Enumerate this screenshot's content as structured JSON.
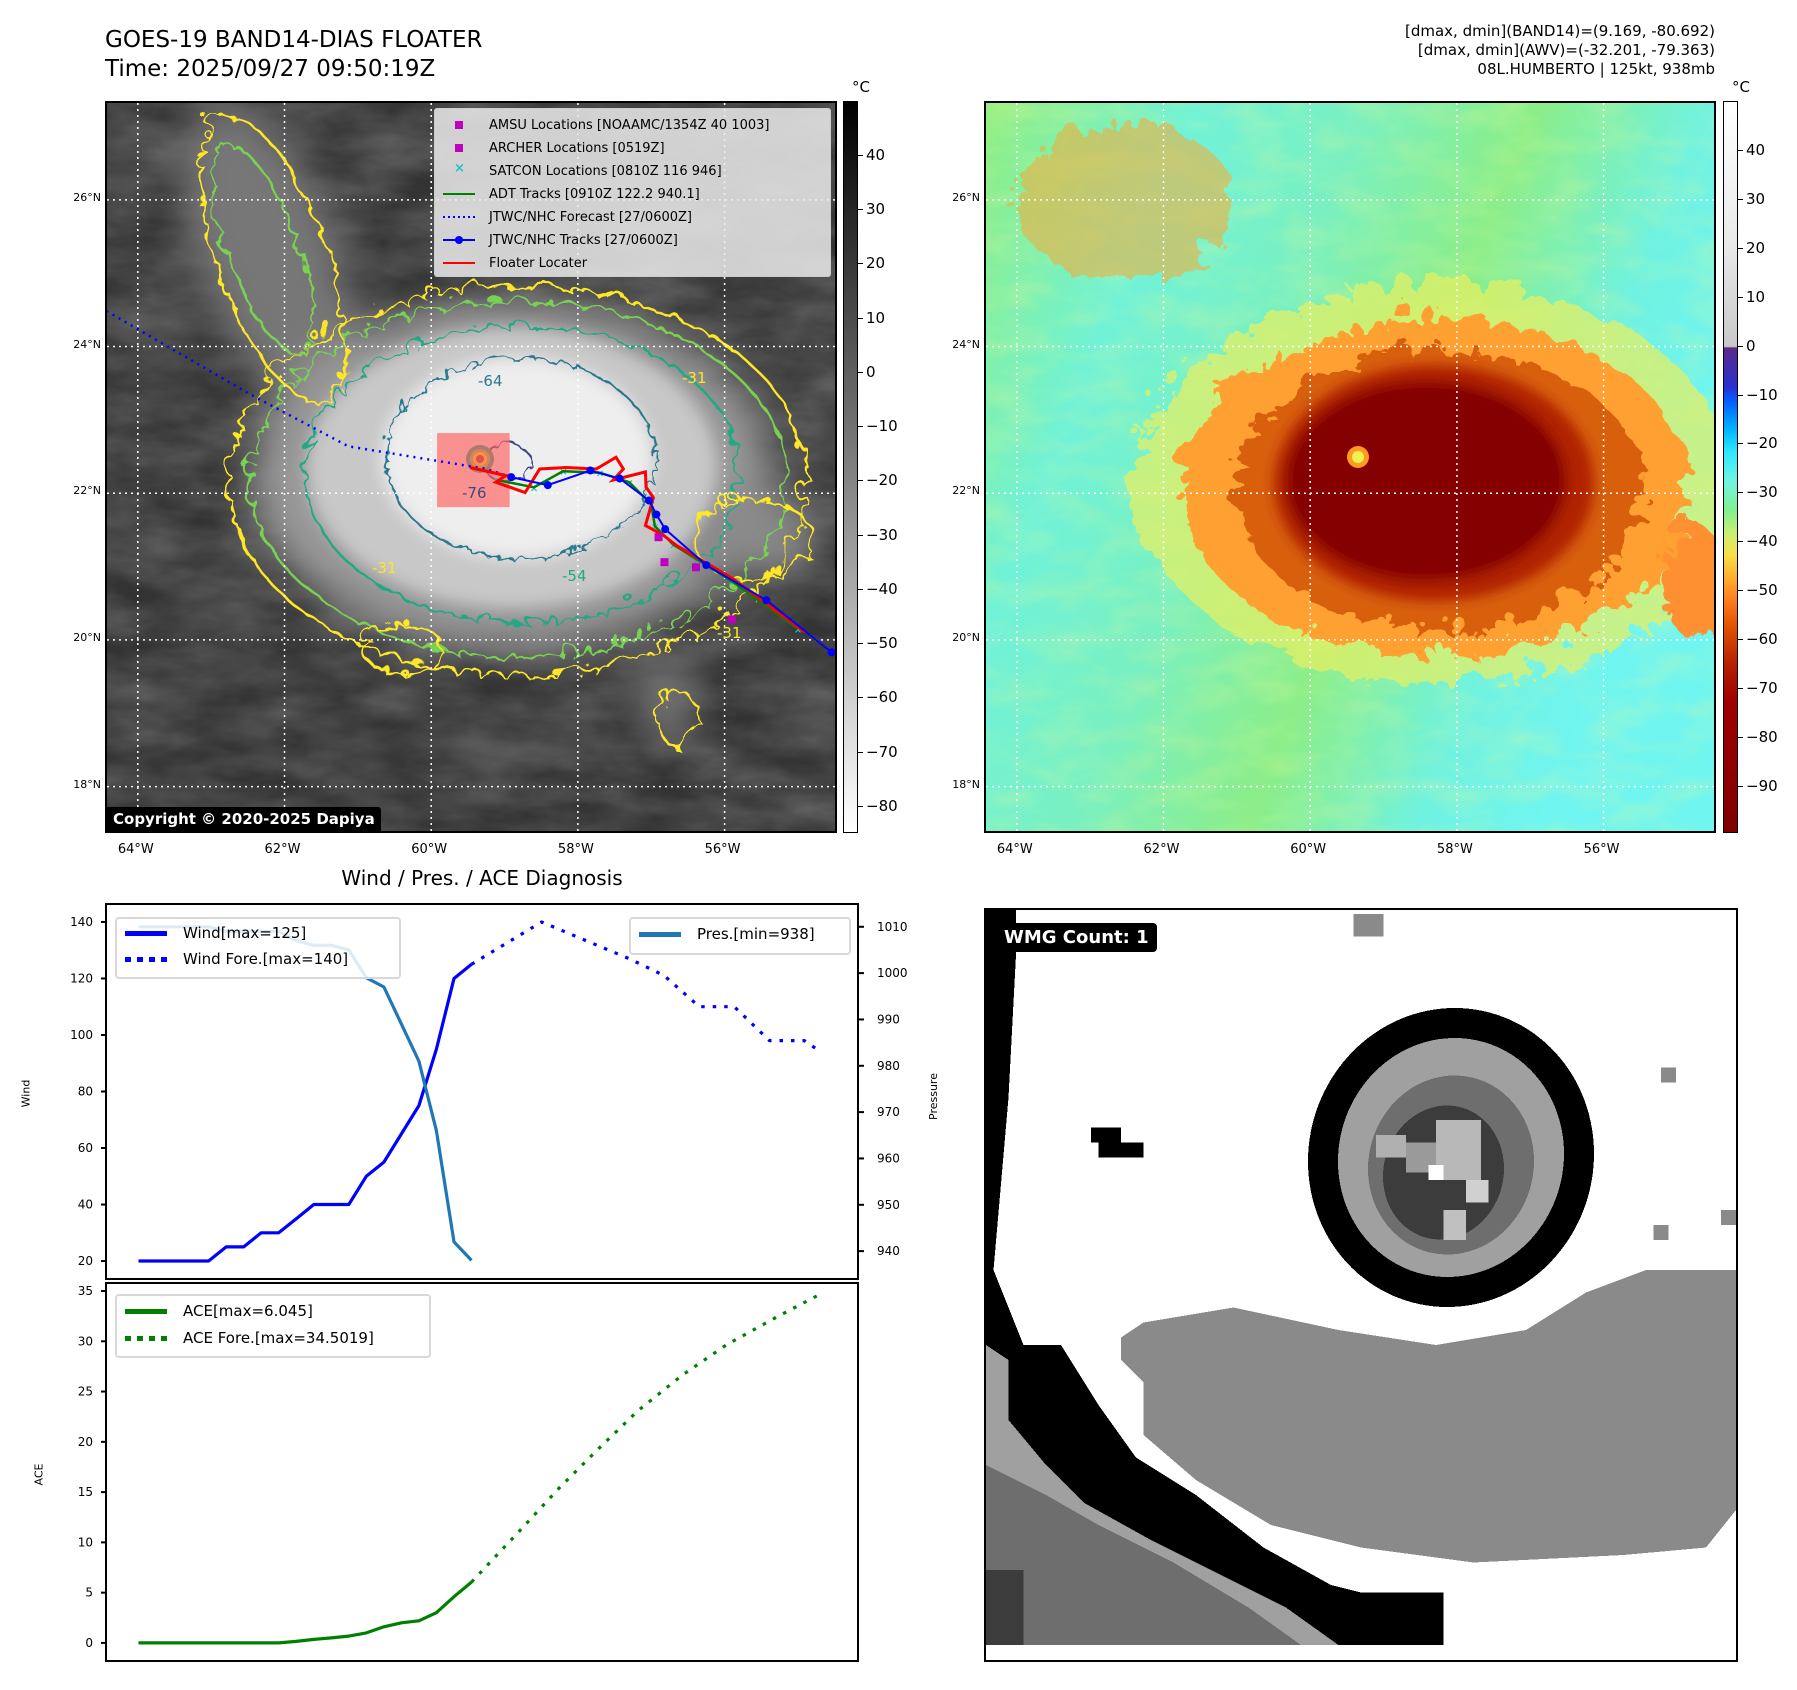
{
  "header": {
    "title_line1": "GOES-19 BAND14-DIAS FLOATER",
    "title_line2": "Time: 2025/09/27 09:50:19Z",
    "info_line1": "[dmax, dmin](BAND14)=(9.169, -80.692)",
    "info_line2": "[dmax, dmin](AWV)=(-32.201, -79.363)",
    "info_line3": "08L.HUMBERTO | 125kt, 938mb"
  },
  "maps": {
    "lon_range": [
      -64.42,
      -54.44
    ],
    "lat_range": [
      17.34,
      27.32
    ],
    "lon_ticks": [
      "64°W",
      "62°W",
      "60°W",
      "58°W",
      "56°W"
    ],
    "lon_tick_values": [
      -64,
      -62,
      -60,
      -58,
      -56
    ],
    "lat_ticks": [
      "26°N",
      "24°N",
      "22°N",
      "20°N",
      "18°N"
    ],
    "lat_tick_values": [
      26,
      24,
      22,
      20,
      18
    ],
    "copyright": "Copyright © 2020-2025 Dapiya",
    "contour_labels": [
      "-64",
      "-76",
      "-54",
      "-31",
      "-31",
      "-31"
    ],
    "legend": [
      {
        "label": "AMSU Locations [NOAAMC/1354Z 40 1003]",
        "color": "#c000c0",
        "kind": "square"
      },
      {
        "label": "ARCHER Locations [0519Z]",
        "color": "#c000c0",
        "kind": "square"
      },
      {
        "label": "SATCON Locations [0810Z 116 946]",
        "color": "#20c0c0",
        "kind": "x"
      },
      {
        "label": "ADT Tracks [0910Z 122.2 940.1]",
        "color": "#008000",
        "kind": "line"
      },
      {
        "label": "JTWC/NHC Forecast [27/0600Z]",
        "color": "#0000ff",
        "kind": "dotted"
      },
      {
        "label": "JTWC/NHC Tracks [27/0600Z]",
        "color": "#0000ff",
        "kind": "line-dot"
      },
      {
        "label": "Floater Locater",
        "color": "#ff0000",
        "kind": "line"
      }
    ],
    "jtwc_track": [
      [
        -58.91,
        22.22
      ],
      [
        -58.41,
        22.11
      ],
      [
        -57.83,
        22.31
      ],
      [
        -57.43,
        22.2
      ],
      [
        -57.03,
        21.9
      ],
      [
        -56.93,
        21.71
      ],
      [
        -56.81,
        21.51
      ],
      [
        -56.25,
        21.02
      ],
      [
        -55.43,
        20.54
      ],
      [
        -54.54,
        19.83
      ]
    ],
    "jtwc_forecast": [
      [
        -58.91,
        22.22
      ],
      [
        -59.24,
        22.33
      ],
      [
        -61.13,
        22.64
      ],
      [
        -62.47,
        23.35
      ],
      [
        -64.42,
        24.48
      ]
    ],
    "floater_locater": [
      [
        -59.47,
        22.35
      ],
      [
        -58.98,
        22.24
      ],
      [
        -59.12,
        22.15
      ],
      [
        -58.72,
        22.01
      ],
      [
        -58.52,
        22.33
      ],
      [
        -58.16,
        22.35
      ],
      [
        -57.75,
        22.33
      ],
      [
        -57.48,
        22.49
      ],
      [
        -57.38,
        22.33
      ],
      [
        -57.52,
        22.18
      ],
      [
        -57.08,
        22.29
      ],
      [
        -57.07,
        22.08
      ],
      [
        -56.97,
        21.94
      ],
      [
        -57.08,
        21.56
      ],
      [
        -56.84,
        21.43
      ],
      [
        -56.66,
        21.29
      ],
      [
        -55.88,
        20.83
      ],
      [
        -54.9,
        20.1
      ]
    ],
    "adt_track": [
      [
        -59.1,
        22.18
      ],
      [
        -58.6,
        22.08
      ],
      [
        -58.2,
        22.3
      ],
      [
        -57.7,
        22.28
      ],
      [
        -57.3,
        22.15
      ],
      [
        -57.0,
        21.85
      ],
      [
        -56.95,
        21.55
      ],
      [
        -56.7,
        21.3
      ],
      [
        -55.9,
        20.8
      ],
      [
        -55.0,
        20.15
      ]
    ],
    "amsu_archer_points": [
      [
        -56.9,
        21.4
      ],
      [
        -56.82,
        21.06
      ],
      [
        -56.39,
        20.99
      ],
      [
        -55.9,
        20.28
      ]
    ],
    "floater_box": {
      "lon": [
        -59.92,
        -58.93
      ],
      "lat": [
        21.81,
        22.82
      ]
    },
    "colorbar_unit": "°C",
    "colorbar1": {
      "range": [
        50.1,
        -84.8
      ],
      "ticks": [
        "40",
        "30",
        "20",
        "10",
        "0",
        "−10",
        "−20",
        "−30",
        "−40",
        "−50",
        "−60",
        "−70",
        "−80"
      ],
      "tick_values": [
        40,
        30,
        20,
        10,
        0,
        -10,
        -20,
        -30,
        -40,
        -50,
        -60,
        -70,
        -80
      ]
    },
    "colorbar2": {
      "range": [
        50.2,
        -99.4
      ],
      "ticks": [
        "40",
        "30",
        "20",
        "10",
        "0",
        "−10",
        "−20",
        "−30",
        "−40",
        "−50",
        "−60",
        "−70",
        "−80",
        "−90"
      ],
      "tick_values": [
        40,
        30,
        20,
        10,
        0,
        -10,
        -20,
        -30,
        -40,
        -50,
        -60,
        -70,
        -80,
        -90
      ]
    }
  },
  "chart_data": [
    {
      "type": "line",
      "title": "Wind / Pres. / ACE Diagnosis",
      "ylabel": "Wind",
      "ylabel_right": "Pressure",
      "xlim": [
        -1.8,
        41
      ],
      "ylim": [
        14,
        146
      ],
      "ylim_right": [
        934.2,
        1014.7
      ],
      "yticks": [
        20,
        40,
        60,
        80,
        100,
        120,
        140
      ],
      "yticks_right": [
        940,
        950,
        960,
        970,
        980,
        990,
        1000,
        1010
      ],
      "series": [
        {
          "name": "Wind[max=125]",
          "axis": "left",
          "color": "#0000ff",
          "style": "solid",
          "x": [
            0,
            1,
            2,
            3,
            4,
            5,
            6,
            7,
            8,
            9,
            10,
            11,
            12,
            13,
            14,
            15,
            16,
            17,
            18,
            19
          ],
          "values": [
            20,
            20,
            20,
            20,
            20,
            25,
            25,
            30,
            30,
            35,
            40,
            40,
            40,
            50,
            55,
            65,
            75,
            95,
            120,
            125
          ]
        },
        {
          "name": "Wind Fore.[max=140]",
          "axis": "left",
          "color": "#0000ff",
          "style": "dotted",
          "x": [
            19,
            23,
            28,
            30,
            32,
            34,
            36,
            38,
            38.7
          ],
          "values": [
            125,
            140,
            127,
            121,
            110,
            110,
            98,
            98,
            95
          ]
        },
        {
          "name": "Pres.[min=938]",
          "axis": "right",
          "color": "#1f77b4",
          "style": "solid",
          "x": [
            0,
            4,
            5,
            8,
            9,
            10,
            11,
            12,
            13,
            14,
            15,
            16,
            17,
            18,
            19
          ],
          "values": [
            1010,
            1010,
            1009,
            1009,
            1007,
            1006,
            1006,
            1005,
            999,
            997,
            989,
            981,
            966,
            942,
            938
          ]
        }
      ]
    },
    {
      "type": "line",
      "ylabel": "ACE",
      "xlim": [
        -1.8,
        41
      ],
      "ylim": [
        -1.7,
        35.7
      ],
      "yticks": [
        0,
        5,
        10,
        15,
        20,
        25,
        30,
        35
      ],
      "series": [
        {
          "name": "ACE[max=6.045]",
          "color": "#008000",
          "style": "solid",
          "x": [
            0,
            8,
            9,
            10,
            11,
            12,
            13,
            14,
            15,
            16,
            17,
            18,
            19
          ],
          "values": [
            0,
            0,
            0.15,
            0.35,
            0.5,
            0.68,
            1.0,
            1.6,
            2.0,
            2.2,
            3.0,
            4.6,
            6.045
          ]
        },
        {
          "name": "ACE Fore.[max=34.5019]",
          "color": "#008000",
          "style": "dotted",
          "x": [
            19,
            21.8,
            24,
            26.3,
            28.5,
            31,
            33.6,
            36.4,
            38.7
          ],
          "values": [
            6.045,
            11.25,
            15.4,
            19.4,
            23.1,
            26.6,
            29.7,
            32.4,
            34.5019
          ]
        }
      ]
    }
  ],
  "wmg": {
    "badge": "WMG Count: 1"
  }
}
